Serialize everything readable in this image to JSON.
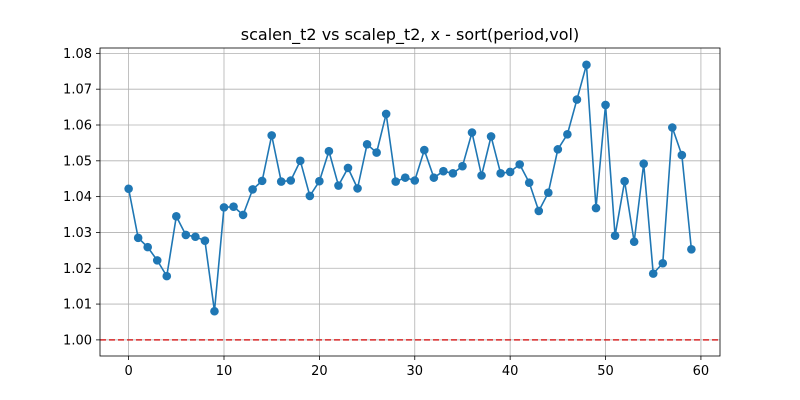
{
  "chart_data": {
    "type": "line",
    "title": "scalen_t2 vs scalep_t2, x - sort(period,vol)",
    "xlabel": "",
    "ylabel": "",
    "xlim": [
      -3,
      62
    ],
    "ylim": [
      0.9955,
      1.0815
    ],
    "xticks": [
      0,
      10,
      20,
      30,
      40,
      50,
      60
    ],
    "xtick_labels": [
      "0",
      "10",
      "20",
      "30",
      "40",
      "50",
      "60"
    ],
    "yticks": [
      1.0,
      1.01,
      1.02,
      1.03,
      1.04,
      1.05,
      1.06,
      1.07,
      1.08
    ],
    "ytick_labels": [
      "1.00",
      "1.01",
      "1.02",
      "1.03",
      "1.04",
      "1.05",
      "1.06",
      "1.07",
      "1.08"
    ],
    "grid": true,
    "reference_line": {
      "y": 1.0,
      "color": "#d62728",
      "style": "dashed"
    },
    "series": [
      {
        "color": "#1f77b4",
        "marker": "circle",
        "x": [
          0,
          1,
          2,
          3,
          4,
          5,
          6,
          7,
          8,
          9,
          10,
          11,
          12,
          13,
          14,
          15,
          16,
          17,
          18,
          19,
          20,
          21,
          22,
          23,
          24,
          25,
          26,
          27,
          28,
          29,
          30,
          31,
          32,
          33,
          34,
          35,
          36,
          37,
          38,
          39,
          40,
          41,
          42,
          43,
          44,
          45,
          46,
          47,
          48,
          49,
          50,
          51,
          52,
          53,
          54,
          55,
          56,
          57,
          58,
          59
        ],
        "y": [
          1.0422,
          1.0285,
          1.0259,
          1.0222,
          1.0178,
          1.0345,
          1.0293,
          1.0288,
          1.0277,
          1.008,
          1.037,
          1.0372,
          1.0349,
          1.042,
          1.0444,
          1.0571,
          1.0442,
          1.0445,
          1.05,
          1.0402,
          1.0443,
          1.0527,
          1.0431,
          1.048,
          1.0423,
          1.0546,
          1.0523,
          1.0631,
          1.0442,
          1.0453,
          1.0445,
          1.053,
          1.0453,
          1.0471,
          1.0465,
          1.0485,
          1.0579,
          1.0459,
          1.0568,
          1.0465,
          1.0469,
          1.049,
          1.0439,
          1.036,
          1.0411,
          1.0532,
          1.0574,
          1.0671,
          1.0768,
          1.0368,
          1.0656,
          1.0291,
          1.0443,
          1.0274,
          1.0492,
          1.0185,
          1.0214,
          1.0593,
          1.0516,
          1.0253
        ]
      }
    ]
  }
}
